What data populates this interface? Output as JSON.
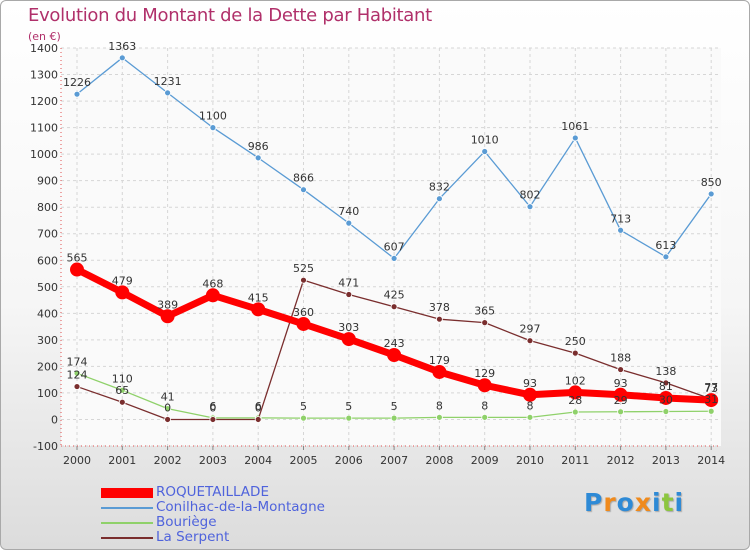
{
  "title": "Evolution du Montant de la Dette par Habitant",
  "subtitle": "(en €)",
  "logo": {
    "text": "Proxiti",
    "colors": [
      "#2e8ad6",
      "#f08a1c",
      "#2e8ad6",
      "#f08a1c",
      "#2e8ad6",
      "#8cc63f",
      "#2e8ad6"
    ]
  },
  "chart_data": {
    "type": "line",
    "title": "Evolution du Montant de la Dette par Habitant",
    "ylabel": "(en €)",
    "xlabel": "",
    "x": [
      "2000",
      "2001",
      "2002",
      "2003",
      "2004",
      "2005",
      "2006",
      "2007",
      "2008",
      "2009",
      "2010",
      "2011",
      "2012",
      "2013",
      "2014"
    ],
    "ylim": [
      -100,
      1400
    ],
    "yticks": [
      -100,
      0,
      100,
      200,
      300,
      400,
      500,
      600,
      700,
      800,
      900,
      1000,
      1100,
      1200,
      1300,
      1400
    ],
    "grid": true,
    "legend_position": "bottom-left",
    "series": [
      {
        "name": "ROQUETAILLADE",
        "color": "#ff0000",
        "values": [
          565,
          479,
          389,
          468,
          415,
          360,
          303,
          243,
          179,
          129,
          93,
          102,
          93,
          81,
          73
        ]
      },
      {
        "name": "Conilhac-de-la-Montagne",
        "color": "#5a9bd4",
        "values": [
          1226,
          1363,
          1231,
          1100,
          986,
          866,
          740,
          607,
          832,
          1010,
          802,
          1061,
          713,
          613,
          850
        ]
      },
      {
        "name": "Bouriège",
        "color": "#8fd16a",
        "values": [
          174,
          110,
          41,
          6,
          6,
          5,
          5,
          5,
          8,
          8,
          8,
          28,
          29,
          30,
          31
        ]
      },
      {
        "name": "La Serpent",
        "color": "#7a2e2e",
        "values": [
          124,
          65,
          0,
          0,
          0,
          525,
          471,
          425,
          378,
          365,
          297,
          250,
          188,
          138,
          77
        ]
      }
    ]
  }
}
